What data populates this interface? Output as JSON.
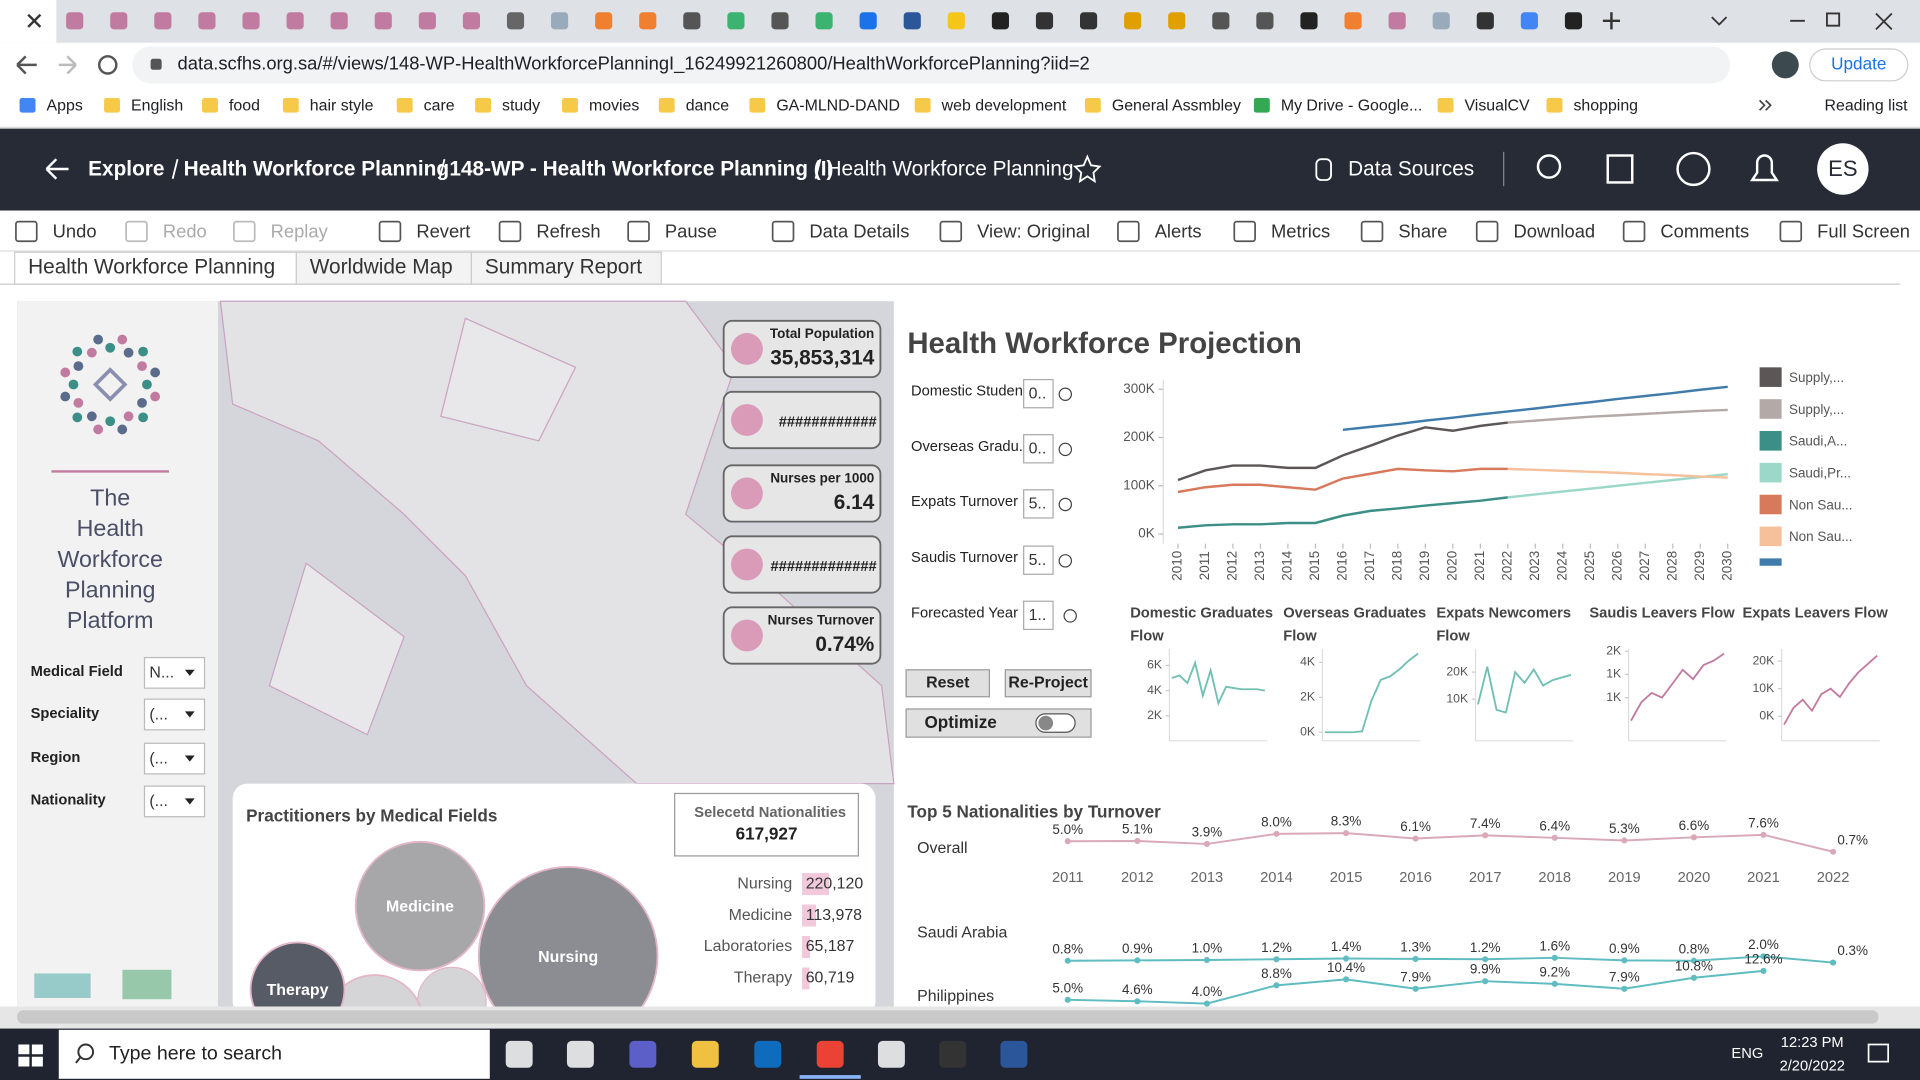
{
  "browser": {
    "url": "data.scfhs.org.sa/#/views/148-WP-HealthWorkforcePlanningI_16249921260800/HealthWorkforcePlanning?iid=2",
    "update": "Update",
    "bookmarks": [
      "Apps",
      "English",
      "food",
      "hair style",
      "care",
      "study",
      "movies",
      "dance",
      "GA-MLND-DAND",
      "web development",
      "General Assmbley",
      "My Drive - Google...",
      "VisualCV",
      "shopping"
    ],
    "reading_list": "Reading list"
  },
  "header": {
    "breadcrumb": [
      "Explore",
      "Health Workforce Planning",
      "148-WP - Health Workforce Planning (I)",
      "Health Workforce Planning"
    ],
    "data_sources": "Data Sources",
    "avatar": "ES"
  },
  "toolbar": [
    "Undo",
    "Redo",
    "Replay",
    "Revert",
    "Refresh",
    "Pause",
    "Data Details",
    "View: Original",
    "Alerts",
    "Metrics",
    "Share",
    "Download",
    "Comments",
    "Full Screen"
  ],
  "tabs": [
    "Health Workforce Planning",
    "Worldwide Map",
    "Summary Report"
  ],
  "sidebar": {
    "platform_title": "The Health Workforce Planning Platform",
    "filters": [
      {
        "label": "Medical Field",
        "value": "N..."
      },
      {
        "label": "Speciality",
        "value": "(..."
      },
      {
        "label": "Region",
        "value": "(..."
      },
      {
        "label": "Nationality",
        "value": "(..."
      }
    ]
  },
  "kpis": [
    {
      "label": "Total Population",
      "value": "35,853,314"
    },
    {
      "value": "############"
    },
    {
      "label": "Nurses per 1000",
      "value": "6.14"
    },
    {
      "value": "#############"
    },
    {
      "label": "Nurses Turnover",
      "value": "0.74%"
    }
  ],
  "projection": {
    "title": "Health Workforce Projection",
    "parameters": [
      {
        "label": "Domestic Studen...",
        "value": "0.."
      },
      {
        "label": "Overseas Gradu...",
        "value": "0.."
      },
      {
        "label": "Expats Turnover ...",
        "value": "5.."
      },
      {
        "label": "Saudis Turnover ...",
        "value": "5.."
      },
      {
        "label": "Forecasted Year",
        "value": "1.."
      }
    ],
    "reset": "Reset",
    "reproject": "Re-Project",
    "optimize": "Optimize",
    "chart": {
      "type": "line",
      "x": [
        2010,
        2011,
        2012,
        2013,
        2014,
        2015,
        2016,
        2017,
        2018,
        2019,
        2020,
        2021,
        2022,
        2023,
        2024,
        2025,
        2026,
        2027,
        2028,
        2029,
        2030
      ],
      "ylim": [
        -20000,
        320000
      ],
      "yticks": [
        {
          "value": 0,
          "label": "0K"
        },
        {
          "value": 100000,
          "label": "100K"
        },
        {
          "value": 200000,
          "label": "200K"
        },
        {
          "value": 300000,
          "label": "300K"
        }
      ],
      "series": [
        {
          "name": "Supply,...",
          "color": "#5c5656",
          "values": [
            112000,
            132000,
            142000,
            142000,
            137000,
            137000,
            163000,
            183000,
            204000,
            221000,
            214000,
            224000,
            231000,
            null,
            null,
            null,
            null,
            null,
            null,
            null,
            null
          ]
        },
        {
          "name": "Supply,...",
          "color": "#b3aaa7",
          "values": [
            null,
            null,
            null,
            null,
            null,
            null,
            null,
            null,
            null,
            null,
            null,
            null,
            231000,
            235000,
            239000,
            243000,
            246000,
            249000,
            252000,
            255000,
            257000
          ]
        },
        {
          "name": "Saudi,A...",
          "color": "#3b8f86",
          "values": [
            13000,
            18000,
            20000,
            20000,
            23000,
            23000,
            38000,
            48000,
            53000,
            59000,
            64000,
            69000,
            76000,
            null,
            null,
            null,
            null,
            null,
            null,
            null,
            null
          ]
        },
        {
          "name": "Saudi,Pr...",
          "color": "#9cd8c9",
          "values": [
            null,
            null,
            null,
            null,
            null,
            null,
            null,
            null,
            null,
            null,
            null,
            null,
            76000,
            82000,
            88000,
            94000,
            100000,
            106000,
            112000,
            118000,
            124000
          ]
        },
        {
          "name": "Non Sau...",
          "color": "#d9795c",
          "values": [
            87000,
            97000,
            102000,
            102000,
            97000,
            92000,
            115000,
            125000,
            135000,
            132000,
            130000,
            135000,
            135000,
            null,
            null,
            null,
            null,
            null,
            null,
            null,
            null
          ]
        },
        {
          "name": "Non Sau...",
          "color": "#f5c09a",
          "values": [
            null,
            null,
            null,
            null,
            null,
            null,
            null,
            null,
            null,
            null,
            null,
            null,
            135000,
            133000,
            131000,
            129000,
            127000,
            124000,
            122000,
            119000,
            117000
          ]
        },
        {
          "color": "#3f7cac",
          "values": [
            null,
            null,
            null,
            null,
            null,
            null,
            216000,
            222000,
            228000,
            235000,
            241000,
            248000,
            254000,
            260000,
            267000,
            273000,
            280000,
            286000,
            292000,
            299000,
            305000
          ]
        }
      ]
    },
    "flows": [
      {
        "type": "line",
        "title": "Domestic Graduates Flow",
        "color": "#6fbfb4",
        "ylim": [
          500,
          7300
        ],
        "yticks": [
          {
            "value": 2000,
            "label": "2K"
          },
          {
            "value": 4000,
            "label": "4K"
          },
          {
            "value": 6000,
            "label": "6K"
          }
        ],
        "values": [
          5000,
          5200,
          4600,
          6200,
          3600,
          5600,
          3000,
          4300,
          4200,
          4100,
          4100,
          4100,
          4000
        ]
      },
      {
        "type": "line",
        "title": "Overseas Graduates Flow",
        "color": "#6fbfb4",
        "ylim": [
          -140,
          4770
        ],
        "yticks": [
          {
            "value": 0,
            "label": "0K"
          },
          {
            "value": 2000,
            "label": "2K"
          },
          {
            "value": 4000,
            "label": "4K"
          }
        ],
        "values": [
          0,
          0,
          0,
          0,
          50,
          1800,
          3000,
          3200,
          3600,
          4100,
          4500
        ]
      },
      {
        "type": "line",
        "title": "Expats Newcomers Flow",
        "color": "#6fbfb4",
        "ylim": [
          -3200,
          28600
        ],
        "yticks": [
          {
            "value": 10000,
            "label": "10K"
          },
          {
            "value": 20000,
            "label": "20K"
          }
        ],
        "values": [
          8000,
          22000,
          6000,
          5000,
          20000,
          16000,
          21000,
          15000,
          17000,
          18000,
          19000
        ]
      },
      {
        "type": "line",
        "title": "Saudis Leavers Flow",
        "color": "#c27ba0",
        "ylim": [
          -300,
          1550
        ],
        "yticks": [
          {
            "value": 500,
            "label": "1K"
          },
          {
            "value": 1000,
            "label": "1K"
          },
          {
            "value": 1500,
            "label": "2K"
          }
        ],
        "values": [
          0,
          400,
          600,
          500,
          800,
          1100,
          900,
          1200,
          1300,
          1450
        ]
      },
      {
        "type": "line",
        "title": "Expats Leavers Flow",
        "color": "#c27ba0",
        "ylim": [
          -6700,
          24400
        ],
        "yticks": [
          {
            "value": 0,
            "label": "0K"
          },
          {
            "value": 10000,
            "label": "10K"
          },
          {
            "value": 20000,
            "label": "20K"
          }
        ],
        "values": [
          -3000,
          3000,
          6000,
          2000,
          8000,
          10000,
          7000,
          12000,
          16000,
          19000,
          22000
        ]
      }
    ]
  },
  "practitioners": {
    "title": "Practitioners by Medical Fields",
    "selected_label": "Selecetd Nationalities",
    "selected_value": "617,927",
    "bars": {
      "type": "bar",
      "color": "#f2c9da",
      "categories": [
        "Nursing",
        "Medicine",
        "Laboratories",
        "Therapy"
      ],
      "values": [
        220120,
        113978,
        65187,
        60719
      ],
      "value_labels": [
        "220,120",
        "113,978",
        "65,187",
        "60,719"
      ]
    }
  },
  "turnover": {
    "type": "line",
    "title": "Top 5 Nationalities by Turnover",
    "x": [
      2011,
      2012,
      2013,
      2014,
      2015,
      2016,
      2017,
      2018,
      2019,
      2020,
      2021,
      2022
    ],
    "rows": [
      {
        "name": "Overall",
        "color": "#d9a9b8",
        "values": [
          5.0,
          5.1,
          3.9,
          8.0,
          8.3,
          6.1,
          7.4,
          6.4,
          5.3,
          6.6,
          7.6,
          0.7
        ],
        "value_labels": [
          "5.0%",
          "5.1%",
          "3.9%",
          "8.0%",
          "8.3%",
          "6.1%",
          "7.4%",
          "6.4%",
          "5.3%",
          "6.6%",
          "7.6%",
          "0.7%"
        ]
      },
      {
        "name": "Saudi Arabia",
        "color": "#5fbcc0",
        "values": [
          0.8,
          0.9,
          1.0,
          1.2,
          1.4,
          1.3,
          1.2,
          1.6,
          0.9,
          0.8,
          2.0,
          0.3
        ],
        "value_labels": [
          "0.8%",
          "0.9%",
          "1.0%",
          "1.2%",
          "1.4%",
          "1.3%",
          "1.2%",
          "1.6%",
          "0.9%",
          "0.8%",
          "2.0%",
          "0.3%"
        ]
      },
      {
        "name": "Philippines",
        "color": "#5fbcc0",
        "values": [
          5.0,
          4.6,
          4.0,
          8.8,
          10.4,
          7.9,
          9.9,
          9.2,
          7.9,
          10.8,
          12.6,
          null
        ],
        "value_labels": [
          "5.0%",
          "4.6%",
          "4.0%",
          "8.8%",
          "10.4%",
          "7.9%",
          "9.9%",
          "9.2%",
          "7.9%",
          "10.8%",
          "12.6%",
          null
        ]
      }
    ]
  },
  "taskbar": {
    "search": "Type here to search",
    "language": "ENG",
    "time": "12:23 PM",
    "date": "2/20/2022"
  }
}
